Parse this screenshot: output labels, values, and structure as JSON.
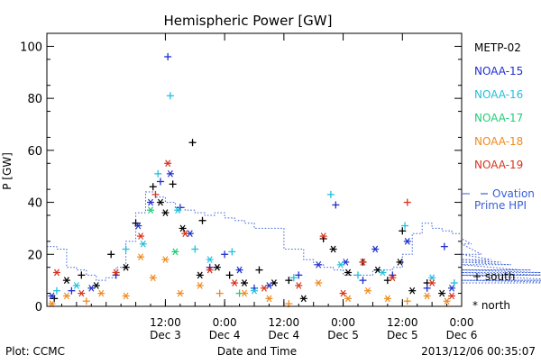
{
  "chart_data": {
    "type": "scatter",
    "title": "Hemispheric Power [GW]",
    "xlabel": "Date and Time",
    "ylabel": "P [GW]",
    "ylim": [
      0,
      105
    ],
    "xlim": [
      "2013-12-02 12:00",
      "2013-12-06 00:00"
    ],
    "y_ticks": [
      "0",
      "20",
      "40",
      "60",
      "80",
      "100"
    ],
    "x_ticks": [
      {
        "t": "2013-12-03 12:00",
        "l1": "12:00",
        "l2": "Dec 3"
      },
      {
        "t": "2013-12-04 00:00",
        "l1": "0:00",
        "l2": "Dec 4"
      },
      {
        "t": "2013-12-04 12:00",
        "l1": "12:00",
        "l2": "Dec 4"
      },
      {
        "t": "2013-12-05 00:00",
        "l1": "0:00",
        "l2": "Dec 5"
      },
      {
        "t": "2013-12-05 12:00",
        "l1": "12:00",
        "l2": "Dec 5"
      },
      {
        "t": "2013-12-06 00:00",
        "l1": "0:00",
        "l2": "Dec 6"
      }
    ],
    "legend": {
      "placement": "right",
      "entries": [
        "METP-02",
        "NOAA-15",
        "NOAA-16",
        "NOAA-17",
        "NOAA-18",
        "NOAA-19"
      ],
      "ovation_label": [
        "Ovation",
        "Prime HPI"
      ],
      "marker_south": "+ south",
      "marker_north": "* north"
    },
    "footer": {
      "left": "Plot: CCMC",
      "right": "2013/12/06 00:35:07"
    },
    "series": [
      {
        "name": "METP-02",
        "color": "#000000",
        "points": [
          [
            "2013-12-02 13:30",
            3,
            "+"
          ],
          [
            "2013-12-02 16:00",
            10,
            "*"
          ],
          [
            "2013-12-02 19:00",
            12,
            "+"
          ],
          [
            "2013-12-02 22:00",
            8,
            "*"
          ],
          [
            "2013-12-03 01:00",
            20,
            "+"
          ],
          [
            "2013-12-03 04:00",
            15,
            "*"
          ],
          [
            "2013-12-03 06:00",
            32,
            "+"
          ],
          [
            "2013-12-03 09:30",
            46,
            "+"
          ],
          [
            "2013-12-03 11:00",
            40,
            "*"
          ],
          [
            "2013-12-03 12:00",
            36,
            "*"
          ],
          [
            "2013-12-03 13:30",
            47,
            "+"
          ],
          [
            "2013-12-03 15:30",
            30,
            "*"
          ],
          [
            "2013-12-03 17:30",
            63,
            "+"
          ],
          [
            "2013-12-03 19:30",
            33,
            "+"
          ],
          [
            "2013-12-03 19:00",
            12,
            "*"
          ],
          [
            "2013-12-03 22:30",
            15,
            "*"
          ],
          [
            "2013-12-04 01:00",
            12,
            "+"
          ],
          [
            "2013-12-04 04:00",
            9,
            "*"
          ],
          [
            "2013-12-04 07:00",
            14,
            "+"
          ],
          [
            "2013-12-04 10:00",
            9,
            "*"
          ],
          [
            "2013-12-04 13:00",
            10,
            "+"
          ],
          [
            "2013-12-04 16:00",
            3,
            "*"
          ],
          [
            "2013-12-04 20:00",
            26,
            "+"
          ],
          [
            "2013-12-04 22:00",
            22,
            "*"
          ],
          [
            "2013-12-05 01:00",
            13,
            "*"
          ],
          [
            "2013-12-05 04:00",
            17,
            "+"
          ],
          [
            "2013-12-05 07:00",
            14,
            "*"
          ],
          [
            "2013-12-05 09:00",
            10,
            "+"
          ],
          [
            "2013-12-05 11:30",
            17,
            "*"
          ],
          [
            "2013-12-05 12:00",
            29,
            "+"
          ],
          [
            "2013-12-05 14:00",
            6,
            "*"
          ],
          [
            "2013-12-05 17:00",
            9,
            "+"
          ],
          [
            "2013-12-05 20:00",
            5,
            "*"
          ]
        ]
      },
      {
        "name": "NOAA-15",
        "color": "#1f2fcf",
        "points": [
          [
            "2013-12-02 13:00",
            4,
            "*"
          ],
          [
            "2013-12-02 17:00",
            6,
            "+"
          ],
          [
            "2013-12-02 21:00",
            7,
            "*"
          ],
          [
            "2013-12-03 02:00",
            12,
            "+"
          ],
          [
            "2013-12-03 06:30",
            31,
            "*"
          ],
          [
            "2013-12-03 09:00",
            40,
            "*"
          ],
          [
            "2013-12-03 11:00",
            48,
            "+"
          ],
          [
            "2013-12-03 12:30",
            96,
            "+"
          ],
          [
            "2013-12-03 13:00",
            51,
            "*"
          ],
          [
            "2013-12-03 15:00",
            38,
            "+"
          ],
          [
            "2013-12-03 17:00",
            28,
            "*"
          ],
          [
            "2013-12-03 21:00",
            15,
            "+"
          ],
          [
            "2013-12-04 00:00",
            20,
            "+"
          ],
          [
            "2013-12-04 03:00",
            14,
            "*"
          ],
          [
            "2013-12-04 06:00",
            7,
            "+"
          ],
          [
            "2013-12-04 09:00",
            8,
            "*"
          ],
          [
            "2013-12-04 15:00",
            12,
            "+"
          ],
          [
            "2013-12-04 19:00",
            16,
            "*"
          ],
          [
            "2013-12-04 22:30",
            39,
            "+"
          ],
          [
            "2013-12-05 00:30",
            17,
            "*"
          ],
          [
            "2013-12-05 04:00",
            10,
            "+"
          ],
          [
            "2013-12-05 06:30",
            22,
            "*"
          ],
          [
            "2013-12-05 10:00",
            12,
            "+"
          ],
          [
            "2013-12-05 13:00",
            25,
            "*"
          ],
          [
            "2013-12-05 17:00",
            7,
            "+"
          ],
          [
            "2013-12-05 20:30",
            23,
            "+"
          ],
          [
            "2013-12-05 22:00",
            7,
            "*"
          ]
        ]
      },
      {
        "name": "NOAA-16",
        "color": "#22c0dc",
        "points": [
          [
            "2013-12-02 14:00",
            6,
            "+"
          ],
          [
            "2013-12-02 18:00",
            8,
            "*"
          ],
          [
            "2013-12-03 04:00",
            22,
            "+"
          ],
          [
            "2013-12-03 07:30",
            24,
            "*"
          ],
          [
            "2013-12-03 10:30",
            51,
            "+"
          ],
          [
            "2013-12-03 13:00",
            81,
            "+"
          ],
          [
            "2013-12-03 14:30",
            37,
            "*"
          ],
          [
            "2013-12-03 18:00",
            22,
            "+"
          ],
          [
            "2013-12-03 21:00",
            18,
            "*"
          ],
          [
            "2013-12-04 01:30",
            21,
            "+"
          ],
          [
            "2013-12-04 06:00",
            6,
            "*"
          ],
          [
            "2013-12-04 14:00",
            11,
            "+"
          ],
          [
            "2013-12-04 21:30",
            43,
            "+"
          ],
          [
            "2013-12-04 23:30",
            16,
            "*"
          ],
          [
            "2013-12-05 03:00",
            12,
            "+"
          ],
          [
            "2013-12-05 08:00",
            13,
            "*"
          ],
          [
            "2013-12-05 12:30",
            31,
            "+"
          ],
          [
            "2013-12-05 18:00",
            11,
            "*"
          ],
          [
            "2013-12-05 22:30",
            9,
            "+"
          ]
        ]
      },
      {
        "name": "NOAA-17",
        "color": "#22cc77",
        "points": [
          [
            "2013-12-03 09:00",
            37,
            "*"
          ],
          [
            "2013-12-03 14:00",
            21,
            "*"
          ],
          [
            "2013-12-04 03:00",
            5,
            "+"
          ]
        ]
      },
      {
        "name": "NOAA-18",
        "color": "#f08a1c",
        "points": [
          [
            "2013-12-02 13:00",
            1,
            "*"
          ],
          [
            "2013-12-02 16:00",
            4,
            "*"
          ],
          [
            "2013-12-02 20:00",
            2,
            "+"
          ],
          [
            "2013-12-02 23:00",
            5,
            "*"
          ],
          [
            "2013-12-03 04:00",
            4,
            "*"
          ],
          [
            "2013-12-03 07:00",
            19,
            "*"
          ],
          [
            "2013-12-03 09:30",
            11,
            "*"
          ],
          [
            "2013-12-03 12:00",
            18,
            "*"
          ],
          [
            "2013-12-03 15:00",
            5,
            "*"
          ],
          [
            "2013-12-03 19:00",
            8,
            "*"
          ],
          [
            "2013-12-03 23:00",
            5,
            "+"
          ],
          [
            "2013-12-04 04:00",
            5,
            "*"
          ],
          [
            "2013-12-04 09:00",
            3,
            "*"
          ],
          [
            "2013-12-04 13:00",
            1,
            "+"
          ],
          [
            "2013-12-04 19:00",
            9,
            "*"
          ],
          [
            "2013-12-05 01:00",
            3,
            "*"
          ],
          [
            "2013-12-05 05:00",
            6,
            "*"
          ],
          [
            "2013-12-05 09:00",
            3,
            "*"
          ],
          [
            "2013-12-05 13:00",
            2,
            "+"
          ],
          [
            "2013-12-05 17:00",
            4,
            "*"
          ],
          [
            "2013-12-05 21:00",
            2,
            "*"
          ]
        ]
      },
      {
        "name": "NOAA-19",
        "color": "#d8321c",
        "points": [
          [
            "2013-12-02 14:00",
            13,
            "*"
          ],
          [
            "2013-12-02 19:00",
            5,
            "*"
          ],
          [
            "2013-12-03 02:00",
            13,
            "*"
          ],
          [
            "2013-12-03 07:00",
            27,
            "*"
          ],
          [
            "2013-12-03 10:00",
            43,
            "+"
          ],
          [
            "2013-12-03 12:30",
            55,
            "*"
          ],
          [
            "2013-12-03 16:00",
            28,
            "*"
          ],
          [
            "2013-12-03 21:00",
            14,
            "*"
          ],
          [
            "2013-12-04 02:00",
            9,
            "*"
          ],
          [
            "2013-12-04 08:00",
            7,
            "*"
          ],
          [
            "2013-12-04 15:00",
            8,
            "*"
          ],
          [
            "2013-12-04 20:00",
            27,
            "*"
          ],
          [
            "2013-12-05 00:00",
            5,
            "*"
          ],
          [
            "2013-12-05 04:00",
            17,
            "*"
          ],
          [
            "2013-12-05 10:00",
            11,
            "*"
          ],
          [
            "2013-12-05 13:00",
            40,
            "+"
          ],
          [
            "2013-12-05 18:00",
            9,
            "*"
          ],
          [
            "2013-12-05 22:00",
            4,
            "*"
          ]
        ]
      }
    ],
    "ovation": {
      "name": "Ovation Prime HPI",
      "color": "#3a5fd8",
      "step_hours": 2,
      "start": "2013-12-02 12:00",
      "values": [
        23,
        22,
        15,
        14,
        12,
        10,
        11,
        15,
        25,
        36,
        44,
        42,
        40,
        38,
        37,
        36,
        35,
        36,
        34,
        33,
        32,
        30,
        30,
        30,
        22,
        22,
        18,
        16,
        15,
        14,
        12,
        12,
        12,
        14,
        14,
        15,
        20,
        28,
        32,
        30,
        29,
        28,
        26,
        24,
        20,
        18,
        17,
        16,
        14,
        14,
        13,
        12,
        12,
        10,
        10,
        9
      ]
    }
  }
}
